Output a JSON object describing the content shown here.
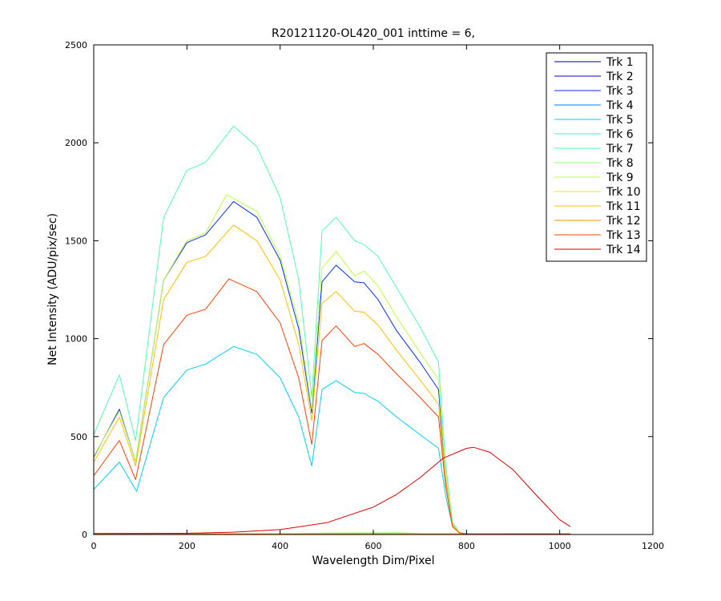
{
  "chart_data": {
    "type": "line",
    "title": "R20121120-OL420_001 inttime = 6,",
    "xlabel": "Wavelength Dim/Pixel",
    "ylabel": "Net Intensity (ADU/pix/sec)",
    "xlim": [
      0,
      1200
    ],
    "ylim": [
      0,
      2500
    ],
    "xticks": [
      0,
      200,
      400,
      600,
      800,
      1000,
      1200
    ],
    "yticks": [
      0,
      500,
      1000,
      1500,
      2000,
      2500
    ],
    "grid": false,
    "legend_position": "top-right",
    "series": [
      {
        "name": "Trk 1",
        "color": "#00008F",
        "x": [
          0,
          1023
        ],
        "y": [
          3,
          3
        ]
      },
      {
        "name": "Trk 2",
        "color": "#0000DF",
        "x": [
          0,
          1023
        ],
        "y": [
          3,
          3
        ]
      },
      {
        "name": "Trk 3",
        "color": "#0030FF",
        "x": [
          0,
          55,
          90,
          150,
          200,
          240,
          300,
          350,
          400,
          440,
          468,
          490,
          520,
          560,
          580,
          610,
          650,
          700,
          740,
          755,
          770,
          785,
          800,
          1023
        ],
        "y": [
          395,
          640,
          370,
          1300,
          1490,
          1530,
          1700,
          1620,
          1400,
          1050,
          620,
          1290,
          1375,
          1290,
          1285,
          1200,
          1040,
          880,
          740,
          300,
          50,
          10,
          3,
          3
        ]
      },
      {
        "name": "Trk 4",
        "color": "#0080FF",
        "x": [
          0,
          1023
        ],
        "y": [
          3,
          3
        ]
      },
      {
        "name": "Trk 5",
        "color": "#00CFFF",
        "x": [
          0,
          55,
          92,
          150,
          200,
          240,
          300,
          350,
          400,
          440,
          468,
          490,
          520,
          560,
          580,
          610,
          650,
          700,
          740,
          755,
          770,
          785,
          800,
          1023
        ],
        "y": [
          230,
          370,
          220,
          700,
          840,
          870,
          960,
          920,
          800,
          600,
          350,
          740,
          785,
          725,
          720,
          680,
          600,
          510,
          440,
          200,
          40,
          8,
          3,
          3
        ]
      },
      {
        "name": "Trk 6",
        "color": "#20FFDF",
        "x": [
          0,
          1023
        ],
        "y": [
          3,
          3
        ]
      },
      {
        "name": "Trk 7",
        "color": "#50FFAF",
        "x": [
          0,
          55,
          90,
          150,
          200,
          240,
          300,
          350,
          400,
          440,
          468,
          490,
          520,
          560,
          580,
          610,
          650,
          700,
          740,
          755,
          770,
          785,
          800,
          1023
        ],
        "y": [
          510,
          815,
          480,
          1620,
          1860,
          1900,
          2085,
          1980,
          1720,
          1300,
          700,
          1550,
          1620,
          1500,
          1480,
          1420,
          1260,
          1060,
          880,
          360,
          60,
          10,
          3,
          3
        ]
      },
      {
        "name": "Trk 8",
        "color": "#8FFF70",
        "x": [
          0,
          400,
          500,
          650,
          700,
          1023
        ],
        "y": [
          3,
          4,
          7,
          9,
          5,
          3
        ]
      },
      {
        "name": "Trk 9",
        "color": "#BFFF40",
        "x": [
          0,
          55,
          90,
          150,
          200,
          240,
          285,
          350,
          400,
          440,
          468,
          490,
          520,
          560,
          580,
          610,
          650,
          700,
          740,
          755,
          770,
          785,
          800,
          1023
        ],
        "y": [
          400,
          630,
          370,
          1300,
          1500,
          1540,
          1735,
          1650,
          1420,
          1080,
          640,
          1360,
          1445,
          1320,
          1345,
          1270,
          1110,
          930,
          790,
          310,
          50,
          10,
          3,
          3
        ]
      },
      {
        "name": "Trk 10",
        "color": "#DFEF10",
        "x": [
          0,
          1023
        ],
        "y": [
          3,
          3
        ]
      },
      {
        "name": "Trk 11",
        "color": "#FFBF00",
        "x": [
          0,
          55,
          90,
          150,
          200,
          240,
          300,
          350,
          400,
          440,
          468,
          490,
          520,
          560,
          580,
          610,
          650,
          700,
          740,
          755,
          770,
          785,
          800,
          1023
        ],
        "y": [
          370,
          600,
          350,
          1200,
          1390,
          1420,
          1580,
          1500,
          1300,
          970,
          580,
          1180,
          1240,
          1140,
          1135,
          1070,
          940,
          790,
          665,
          270,
          45,
          9,
          3,
          3
        ]
      },
      {
        "name": "Trk 12",
        "color": "#FF8F00",
        "x": [
          0,
          1023
        ],
        "y": [
          3,
          3
        ]
      },
      {
        "name": "Trk 13",
        "color": "#FF4000",
        "x": [
          0,
          55,
          90,
          150,
          200,
          240,
          290,
          350,
          400,
          440,
          468,
          490,
          520,
          560,
          580,
          610,
          650,
          700,
          740,
          755,
          770,
          785,
          800,
          1023
        ],
        "y": [
          300,
          480,
          280,
          970,
          1120,
          1150,
          1305,
          1240,
          1080,
          800,
          460,
          990,
          1065,
          960,
          975,
          920,
          820,
          700,
          600,
          250,
          40,
          8,
          3,
          3
        ]
      },
      {
        "name": "Trk 14",
        "color": "#DF0000",
        "x": [
          0,
          200,
          300,
          400,
          500,
          600,
          650,
          700,
          750,
          800,
          815,
          850,
          900,
          950,
          1000,
          1023
        ],
        "y": [
          5,
          6,
          12,
          25,
          60,
          140,
          205,
          290,
          390,
          440,
          445,
          420,
          330,
          200,
          75,
          40
        ]
      }
    ]
  }
}
